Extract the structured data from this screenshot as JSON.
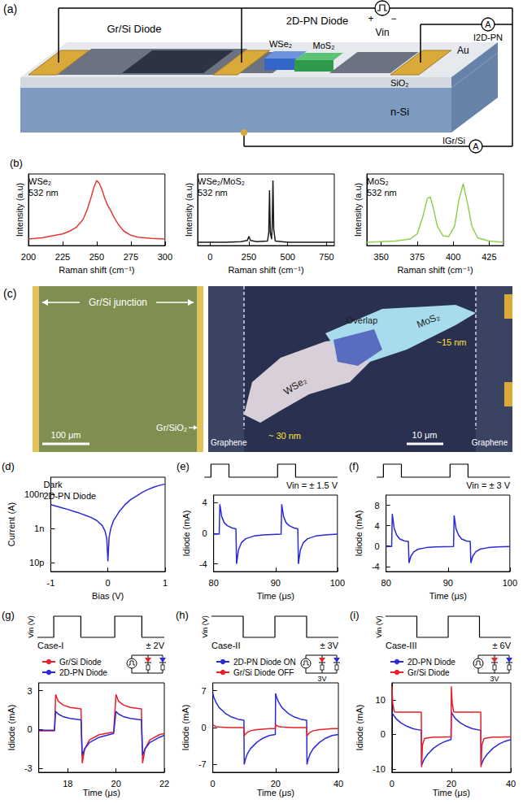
{
  "schematic": {
    "panel_label": "(a)",
    "gr_si_diode": "Gr/Si Diode",
    "pn_diode": "2D-PN Diode",
    "wse2": "WSe₂",
    "mos2": "MoS₂",
    "au": "Au",
    "sio2": "SiO₂",
    "substrate": "n-Si",
    "source": "Vin",
    "plus": "+",
    "minus": "−",
    "current_pn": "I2D-PN",
    "current_grsi": "IGr/Si",
    "ammeter": "A"
  },
  "micrograph": {
    "panel_label": "(c)",
    "junction": "Gr/Si junction",
    "edge": "Gr/SiO₂",
    "scale_left": "100 μm",
    "graphene": "Graphene",
    "wse2": "WSe₂",
    "mos2": "MoS₂",
    "overlap": "Overlap",
    "thickness_wse2": "~ 30 nm",
    "thickness_mos2": "~15 nm",
    "scale_right": "10 μm"
  },
  "chart_data": [
    {
      "type": "line",
      "panel_label": "(b)",
      "title": "WSe₂",
      "subtitle": "532 nm",
      "x_label": "Raman shift (cm⁻¹)",
      "y_label": "Intensity (a.u)",
      "color": "#e53935",
      "x": [
        200,
        210,
        220,
        225,
        230,
        235,
        240,
        243,
        246,
        248,
        250,
        252,
        254,
        256,
        258,
        260,
        263,
        266,
        270,
        275,
        280,
        290,
        300
      ],
      "values": [
        0.1,
        0.12,
        0.16,
        0.18,
        0.22,
        0.28,
        0.4,
        0.55,
        0.75,
        0.9,
        1.0,
        0.95,
        0.85,
        0.72,
        0.62,
        0.55,
        0.42,
        0.32,
        0.22,
        0.16,
        0.13,
        0.11,
        0.1
      ],
      "xlim": [
        200,
        300
      ],
      "xticks": [
        200,
        225,
        250,
        275,
        300
      ],
      "ylim": [
        0,
        1.1
      ],
      "yticks": [],
      "tick_labels": "x",
      "grid": false
    },
    {
      "type": "line",
      "title": "WSe₂/MoS₂",
      "subtitle": "532 nm",
      "x_label": "Raman shift (cm⁻¹)",
      "y_label": "Intensity (a.u)",
      "color": "#1a1a1a",
      "x": [
        -80,
        0,
        100,
        200,
        240,
        250,
        260,
        300,
        370,
        378,
        383,
        388,
        396,
        400,
        405,
        410,
        420,
        500,
        600,
        700,
        800
      ],
      "values": [
        0.05,
        0.05,
        0.05,
        0.06,
        0.08,
        0.14,
        0.08,
        0.06,
        0.07,
        0.2,
        0.85,
        0.2,
        0.1,
        0.3,
        1.0,
        0.25,
        0.07,
        0.05,
        0.05,
        0.05,
        0.05
      ],
      "xlim": [
        -80,
        800
      ],
      "xticks": [
        0,
        250,
        500,
        750
      ],
      "ylim": [
        0,
        1.1
      ],
      "yticks": [],
      "tick_labels": "x",
      "grid": false
    },
    {
      "type": "line",
      "title": "MoS₂",
      "subtitle": "532 nm",
      "x_label": "Raman shift (cm⁻¹)",
      "y_label": "Intensity (a.u)",
      "color": "#8fd14f",
      "x": [
        340,
        350,
        360,
        370,
        375,
        379,
        382,
        384,
        386,
        389,
        393,
        397,
        401,
        404,
        407,
        410,
        413,
        417,
        425,
        435
      ],
      "values": [
        0.05,
        0.06,
        0.07,
        0.1,
        0.18,
        0.45,
        0.72,
        0.75,
        0.6,
        0.3,
        0.15,
        0.14,
        0.3,
        0.7,
        0.95,
        0.65,
        0.3,
        0.12,
        0.07,
        0.05
      ],
      "xlim": [
        340,
        435
      ],
      "xticks": [
        350,
        375,
        400,
        425
      ],
      "ylim": [
        0,
        1.1
      ],
      "yticks": [],
      "tick_labels": "x",
      "grid": false
    },
    {
      "type": "line",
      "panel_label": "(d)",
      "title": "Dark",
      "subtitle": "2D-PN Diode",
      "x_label": "Bias (V)",
      "y_label": "Current (A)",
      "color": "#2a2ad8",
      "log": "y",
      "x": [
        -1,
        -0.9,
        -0.8,
        -0.7,
        -0.6,
        -0.5,
        -0.4,
        -0.3,
        -0.2,
        -0.1,
        -0.05,
        -0.02,
        0,
        0.02,
        0.05,
        0.1,
        0.2,
        0.3,
        0.4,
        0.5,
        0.6,
        0.7,
        0.8,
        0.9,
        1
      ],
      "values": [
        2.5e-08,
        2e-08,
        1.6e-08,
        1.3e-08,
        1e-08,
        8e-09,
        6e-09,
        4.5e-09,
        3e-09,
        1.5e-09,
        7e-10,
        2.5e-10,
        1.2e-11,
        3e-10,
        1e-09,
        3e-09,
        1e-08,
        2.5e-08,
        5e-08,
        8e-08,
        1.3e-07,
        1.9e-07,
        2.6e-07,
        3.3e-07,
        4e-07
      ],
      "xlim": [
        -1,
        1
      ],
      "xticks": [
        -1,
        0,
        1
      ],
      "ylim": [
        3e-12,
        1e-06
      ],
      "yticks": [
        {
          "value": 1e-11,
          "label": "10p"
        },
        {
          "value": 1e-09,
          "label": "1n"
        },
        {
          "value": 1e-07,
          "label": "100n"
        }
      ],
      "grid": false
    },
    {
      "type": "line",
      "panel_label": "(e)",
      "annotation": "Vin = ± 1.5 V",
      "x_label": "Time (μs)",
      "y_label": "Idiode (mA)",
      "color": "#2a2ad8",
      "input_pulse": {
        "x": [
          80,
          81,
          81,
          83.7,
          83.7,
          91,
          91,
          93.7,
          93.7,
          100
        ],
        "values": [
          0,
          0,
          1,
          1,
          0,
          0,
          1,
          1,
          0,
          0
        ]
      },
      "x": [
        80,
        80.9,
        81,
        81.3,
        81.7,
        82.2,
        83,
        83.6,
        83.7,
        84,
        84.5,
        85.2,
        86.5,
        88,
        90.9,
        91,
        91.3,
        91.7,
        92.2,
        93,
        93.6,
        93.7,
        94,
        94.5,
        95.2,
        96.5,
        98,
        100
      ],
      "values": [
        -0.1,
        -0.1,
        3.8,
        2.2,
        1.4,
        1.0,
        0.7,
        0.6,
        -4.0,
        -2.2,
        -1.2,
        -0.7,
        -0.35,
        -0.2,
        -0.1,
        3.8,
        2.2,
        1.4,
        1.0,
        0.7,
        0.6,
        -4.0,
        -2.2,
        -1.2,
        -0.7,
        -0.35,
        -0.2,
        -0.1
      ],
      "xlim": [
        80,
        100
      ],
      "xticks": [
        80,
        90,
        100
      ],
      "ylim": [
        -5,
        5
      ],
      "yticks": [
        -4,
        0,
        4
      ],
      "grid": false
    },
    {
      "type": "line",
      "panel_label": "(f)",
      "annotation": "Vin = ± 3 V",
      "x_label": "Time (μs)",
      "y_label": "Idiode (mA)",
      "color": "#2a2ad8",
      "input_pulse": {
        "x": [
          80,
          81,
          81,
          83.7,
          83.7,
          91,
          91,
          93.7,
          93.7,
          100
        ],
        "values": [
          0,
          0,
          1,
          1,
          0,
          0,
          1,
          1,
          0,
          0
        ]
      },
      "x": [
        80,
        80.9,
        81,
        81.3,
        81.7,
        82.2,
        83,
        83.6,
        83.7,
        84,
        84.5,
        85.2,
        86.5,
        88,
        90.9,
        91,
        91.3,
        91.7,
        92.2,
        93,
        93.6,
        93.7,
        94,
        94.5,
        95.2,
        96.5,
        98,
        100
      ],
      "values": [
        -0.1,
        -0.1,
        6.3,
        3.5,
        2.2,
        1.4,
        1.0,
        0.9,
        -3.3,
        -2.0,
        -1.1,
        -0.6,
        -0.3,
        -0.15,
        -0.1,
        6.0,
        3.4,
        2.2,
        1.4,
        1.0,
        0.9,
        -3.3,
        -2.0,
        -1.1,
        -0.6,
        -0.3,
        -0.15,
        -0.1
      ],
      "xlim": [
        80,
        100
      ],
      "xticks": [
        80,
        90,
        100
      ],
      "ylim": [
        -5,
        10
      ],
      "yticks": [
        -4,
        0,
        4,
        8
      ],
      "grid": false
    },
    {
      "type": "line",
      "panel_label": "(g)",
      "title": "Case-I",
      "annotation": "± 2V",
      "x_label": "Time (μs)",
      "y_label": "Idiode (mA)",
      "legend": "top",
      "input_pulse": {
        "label": "Vin (V)",
        "x": [
          16.8,
          17.47,
          17.47,
          18.58,
          18.58,
          19.97,
          19.97,
          21.08,
          21.08,
          22
        ],
        "values": [
          0,
          0,
          1,
          1,
          0,
          0,
          1,
          1,
          0,
          0
        ]
      },
      "inset": {
        "colors": [
          "#e8202a",
          "#2a2ad8"
        ]
      },
      "x": [
        16.8,
        17.45,
        17.5,
        17.6,
        17.8,
        18.1,
        18.55,
        18.6,
        18.7,
        18.9,
        19.3,
        19.9,
        20.0,
        20.1,
        20.3,
        20.6,
        21.05,
        21.1,
        21.2,
        21.4,
        21.8,
        22
      ],
      "series": [
        {
          "name": "Gr/Si Diode",
          "color": "#e8202a",
          "values": [
            -0.1,
            -0.1,
            2.7,
            2.2,
            1.9,
            1.7,
            1.6,
            -2.6,
            -1.5,
            -0.8,
            -0.4,
            -0.2,
            2.7,
            2.2,
            1.9,
            1.7,
            1.6,
            -2.6,
            -1.5,
            -0.8,
            -0.4,
            -0.3
          ]
        },
        {
          "name": "2D-PN Diode",
          "color": "#2a2ad8",
          "values": [
            -0.05,
            -0.05,
            1.4,
            1.2,
            1.0,
            0.85,
            0.75,
            -2.0,
            -1.5,
            -1.0,
            -0.6,
            -0.3,
            1.4,
            1.2,
            1.0,
            0.85,
            0.75,
            -2.0,
            -1.5,
            -1.0,
            -0.6,
            -0.45
          ]
        }
      ],
      "xlim": [
        16.8,
        22
      ],
      "xticks": [
        18,
        20,
        22
      ],
      "ylim": [
        -3.3,
        3.6
      ],
      "yticks": [
        -3,
        0,
        3
      ],
      "grid": false
    },
    {
      "type": "line",
      "panel_label": "(h)",
      "title": "Case-II",
      "annotation": "± 3V",
      "x_label": "Time (μs)",
      "y_label": "Idiode (mA)",
      "legend": "top",
      "input_pulse": {
        "label": "Vin (V)",
        "x": [
          0,
          10,
          10,
          20,
          20,
          30,
          30,
          40
        ],
        "values": [
          1,
          1,
          0,
          0,
          1,
          1,
          0,
          0
        ]
      },
      "inset": {
        "colors": [
          "#e8202a",
          "#2a2ad8"
        ],
        "label": "3V"
      },
      "x": [
        0,
        0.3,
        1,
        2,
        4,
        6,
        8,
        9.9,
        10,
        10.3,
        11,
        12,
        14,
        16,
        18,
        19.9,
        20,
        20.3,
        21,
        22,
        24,
        26,
        28,
        29.9,
        30,
        30.3,
        31,
        32,
        34,
        36,
        38,
        40
      ],
      "series": [
        {
          "name": "2D-PN Diode ON",
          "color": "#2a2ad8",
          "values": [
            6.5,
            5.8,
            4.8,
            3.8,
            2.7,
            2.0,
            1.6,
            1.4,
            -7.0,
            -6.2,
            -5.0,
            -4.0,
            -2.8,
            -2.0,
            -1.5,
            -1.3,
            6.5,
            5.8,
            4.8,
            3.8,
            2.7,
            2.0,
            1.6,
            1.4,
            -7.0,
            -6.2,
            -5.0,
            -4.0,
            -2.8,
            -2.0,
            -1.5,
            -1.3
          ]
        },
        {
          "name": "Gr/Si Diode OFF",
          "color": "#e8202a",
          "values": [
            0.6,
            0.4,
            0.2,
            0.1,
            0.05,
            0,
            0,
            0,
            -1.6,
            -1.3,
            -0.9,
            -0.6,
            -0.4,
            -0.3,
            -0.2,
            -0.2,
            0.6,
            0.4,
            0.2,
            0.1,
            0.05,
            0,
            0,
            0,
            -1.6,
            -1.3,
            -0.9,
            -0.6,
            -0.4,
            -0.3,
            -0.2,
            -0.2
          ]
        }
      ],
      "xlim": [
        0,
        40
      ],
      "xticks": [
        0,
        20,
        40
      ],
      "ylim": [
        -8.5,
        8.5
      ],
      "yticks": [
        -7,
        0,
        7
      ],
      "grid": false
    },
    {
      "type": "line",
      "panel_label": "(i)",
      "title": "Case-III",
      "annotation": "± 6V",
      "x_label": "Time (μs)",
      "y_label": "Idiode (mA)",
      "legend": "top",
      "input_pulse": {
        "label": "Vin (V)",
        "x": [
          0,
          10,
          10,
          20,
          20,
          30,
          30,
          40
        ],
        "values": [
          1,
          1,
          0,
          0,
          1,
          1,
          0,
          0
        ]
      },
      "inset": {
        "colors": [
          "#e8202a",
          "#2a2ad8"
        ],
        "label": "3V"
      },
      "x": [
        0,
        0.3,
        0.8,
        1.5,
        3,
        5,
        7,
        9.9,
        10,
        10.3,
        11,
        12,
        14,
        16,
        18,
        19.9,
        20,
        20.3,
        20.8,
        21.5,
        23,
        25,
        27,
        29.9,
        30,
        30.3,
        31,
        32,
        34,
        36,
        38,
        40
      ],
      "series": [
        {
          "name": "2D-PN Diode",
          "color": "#2a2ad8",
          "values": [
            6.5,
            6.0,
            5.3,
            4.5,
            3.4,
            2.4,
            1.7,
            1.2,
            -9,
            -8.3,
            -7,
            -5.8,
            -4,
            -2.8,
            -2,
            -1.5,
            6.5,
            6.0,
            5.3,
            4.5,
            3.4,
            2.4,
            1.7,
            1.2,
            -9,
            -8.3,
            -7,
            -5.8,
            -4,
            -2.8,
            -2,
            -1.5
          ]
        },
        {
          "name": "Gr/Si Diode",
          "color": "#e8202a",
          "values": [
            14,
            9,
            6.6,
            6.5,
            6.5,
            6.5,
            6.5,
            6.5,
            -9.5,
            -3,
            -1.2,
            -1,
            -0.8,
            -0.8,
            -0.7,
            -0.7,
            14,
            9,
            6.6,
            6.5,
            6.5,
            6.5,
            6.5,
            6.5,
            -9.5,
            -3,
            -1.2,
            -1,
            -0.8,
            -0.8,
            -0.7,
            -0.7
          ]
        }
      ],
      "xlim": [
        0,
        40
      ],
      "xticks": [
        0,
        20,
        40
      ],
      "ylim": [
        -11,
        15
      ],
      "yticks": [
        -10,
        0,
        10
      ],
      "grid": false
    }
  ]
}
